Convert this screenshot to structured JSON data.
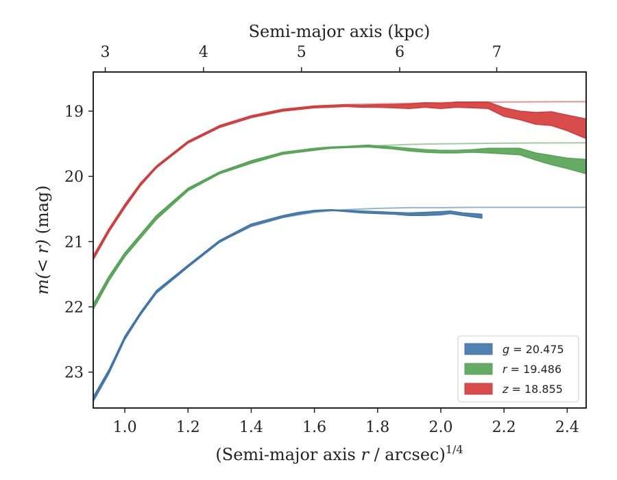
{
  "chart_data": {
    "type": "area",
    "title": "",
    "xlabel": "(Semi-major axis r / arcsec)^1/4",
    "xlabel_parts": {
      "pre": "(Semi-major axis ",
      "var": "r",
      "post": " / arcsec)",
      "sup": "1/4"
    },
    "ylabel": "m(< r) (mag)",
    "ylabel_parts": {
      "var": "m(< r)",
      "post": " (mag)"
    },
    "top_xlabel": "Semi-major axis (kpc)",
    "xlim": [
      0.9,
      2.46
    ],
    "ylim": [
      23.55,
      18.4
    ],
    "y_inverted": true,
    "x_ticks": [
      1.0,
      1.2,
      1.4,
      1.6,
      1.8,
      2.0,
      2.2,
      2.4
    ],
    "x_tick_labels": [
      "1.0",
      "1.2",
      "1.4",
      "1.6",
      "1.8",
      "2.0",
      "2.2",
      "2.4"
    ],
    "y_ticks": [
      19,
      20,
      21,
      22,
      23
    ],
    "y_tick_labels": [
      "19",
      "20",
      "21",
      "22",
      "23"
    ],
    "top_ticks_kpc": [
      3,
      4,
      5,
      6,
      7
    ],
    "top_tick_labels": [
      "3",
      "4",
      "5",
      "6",
      "7"
    ],
    "top_tick_x_positions": [
      0.938,
      1.249,
      1.559,
      1.87,
      2.177
    ],
    "grid": false,
    "legend_position": "lower-right",
    "series": [
      {
        "name": "g = 20.475",
        "legend_var": "g",
        "legend_value": "= 20.475",
        "color": "#3d74a8",
        "fit_asymptote": 20.475,
        "x": [
          0.9,
          0.95,
          1.0,
          1.05,
          1.1,
          1.2,
          1.3,
          1.4,
          1.5,
          1.55,
          1.6,
          1.65,
          1.7,
          1.75,
          1.8,
          1.85,
          1.9,
          1.95,
          2.0,
          2.03,
          2.07,
          2.13
        ],
        "y_low": [
          23.38,
          22.96,
          22.45,
          22.08,
          21.75,
          21.36,
          20.98,
          20.73,
          20.6,
          20.55,
          20.52,
          20.51,
          20.52,
          20.53,
          20.54,
          20.55,
          20.56,
          20.55,
          20.54,
          20.53,
          20.56,
          20.58
        ],
        "y_high": [
          23.45,
          23.02,
          22.5,
          22.12,
          21.79,
          21.39,
          21.01,
          20.76,
          20.63,
          20.58,
          20.54,
          20.52,
          20.54,
          20.56,
          20.57,
          20.58,
          20.6,
          20.6,
          20.59,
          20.57,
          20.6,
          20.64
        ],
        "fit_x": [
          0.9,
          0.95,
          1.0,
          1.05,
          1.1,
          1.2,
          1.3,
          1.4,
          1.5,
          1.6,
          1.7,
          1.8,
          1.9,
          2.0,
          2.1,
          2.2,
          2.3,
          2.46
        ],
        "fit_y": [
          23.41,
          22.98,
          22.47,
          22.1,
          21.76,
          21.37,
          21.0,
          20.77,
          20.63,
          20.55,
          20.51,
          20.49,
          20.48,
          20.48,
          20.475,
          20.475,
          20.475,
          20.475
        ]
      },
      {
        "name": "r = 19.486",
        "legend_var": "r",
        "legend_value": "= 19.486",
        "color": "#53a353",
        "fit_asymptote": 19.486,
        "x": [
          0.9,
          0.95,
          1.0,
          1.1,
          1.2,
          1.3,
          1.4,
          1.5,
          1.6,
          1.65,
          1.7,
          1.77,
          1.85,
          1.9,
          1.95,
          2.0,
          2.05,
          2.1,
          2.15,
          2.25,
          2.3,
          2.35,
          2.4,
          2.46
        ],
        "y_low": [
          21.96,
          21.53,
          21.17,
          20.6,
          20.18,
          19.93,
          19.76,
          19.63,
          19.57,
          19.55,
          19.54,
          19.52,
          19.55,
          19.57,
          19.59,
          19.6,
          19.6,
          19.59,
          19.57,
          19.57,
          19.64,
          19.68,
          19.72,
          19.74
        ],
        "y_high": [
          22.04,
          21.6,
          21.23,
          20.66,
          20.22,
          19.96,
          19.8,
          19.66,
          19.6,
          19.57,
          19.56,
          19.55,
          19.58,
          19.61,
          19.63,
          19.64,
          19.64,
          19.63,
          19.64,
          19.67,
          19.75,
          19.82,
          19.88,
          19.96
        ],
        "fit_x": [
          0.9,
          0.95,
          1.0,
          1.05,
          1.1,
          1.2,
          1.3,
          1.4,
          1.5,
          1.6,
          1.7,
          1.8,
          1.9,
          2.0,
          2.1,
          2.2,
          2.3,
          2.46
        ],
        "fit_y": [
          22.0,
          21.56,
          21.2,
          20.9,
          20.63,
          20.2,
          19.95,
          19.78,
          19.66,
          19.59,
          19.55,
          19.53,
          19.51,
          19.5,
          19.495,
          19.49,
          19.488,
          19.486
        ]
      },
      {
        "name": "z = 18.855",
        "legend_var": "z",
        "legend_value": "= 18.855",
        "color": "#d43838",
        "fit_asymptote": 18.855,
        "x": [
          0.9,
          0.95,
          1.0,
          1.05,
          1.1,
          1.2,
          1.3,
          1.4,
          1.5,
          1.6,
          1.65,
          1.7,
          1.75,
          1.8,
          1.85,
          1.9,
          1.95,
          2.0,
          2.05,
          2.1,
          2.15,
          2.2,
          2.25,
          2.3,
          2.35,
          2.4,
          2.46
        ],
        "y_low": [
          21.22,
          20.8,
          20.43,
          20.1,
          19.84,
          19.46,
          19.22,
          19.07,
          18.97,
          18.92,
          18.91,
          18.9,
          18.91,
          18.9,
          18.9,
          18.89,
          18.87,
          18.88,
          18.86,
          18.86,
          18.86,
          18.95,
          19.0,
          19.02,
          19.01,
          19.06,
          19.12
        ],
        "y_high": [
          21.28,
          20.85,
          20.48,
          20.14,
          19.87,
          19.49,
          19.25,
          19.1,
          19.0,
          18.95,
          18.94,
          18.93,
          18.94,
          18.94,
          18.95,
          18.96,
          18.94,
          18.96,
          18.94,
          18.95,
          18.96,
          19.08,
          19.13,
          19.2,
          19.22,
          19.3,
          19.42
        ],
        "fit_x": [
          0.9,
          0.95,
          1.0,
          1.05,
          1.1,
          1.2,
          1.3,
          1.4,
          1.5,
          1.6,
          1.7,
          1.8,
          1.9,
          2.0,
          2.1,
          2.2,
          2.3,
          2.46
        ],
        "fit_y": [
          21.25,
          20.83,
          20.46,
          20.12,
          19.86,
          19.47,
          19.24,
          19.09,
          18.99,
          18.93,
          18.9,
          18.89,
          18.88,
          18.87,
          18.865,
          18.86,
          18.857,
          18.855
        ]
      }
    ]
  }
}
